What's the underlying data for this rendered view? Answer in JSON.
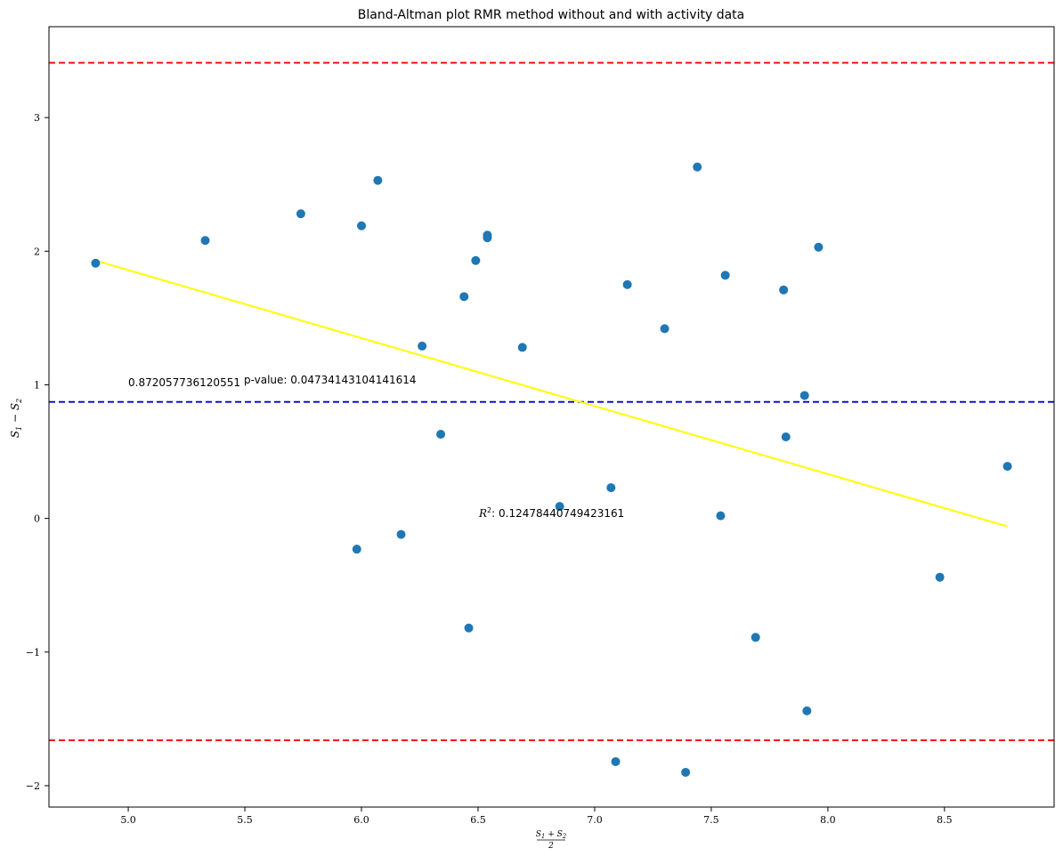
{
  "chart_data": {
    "type": "scatter",
    "title": "Bland-Altman plot RMR method without and with activity data",
    "xlabel": "(S1+S2)/2",
    "ylabel": "S1 − S2",
    "xlim": [
      4.66,
      8.97
    ],
    "ylim": [
      -2.16,
      3.68
    ],
    "xticks": [
      5.0,
      5.5,
      6.0,
      6.5,
      7.0,
      7.5,
      8.0,
      8.5
    ],
    "xtick_labels": [
      "5.0",
      "5.5",
      "6.0",
      "6.5",
      "7.0",
      "7.5",
      "8.0",
      "8.5"
    ],
    "yticks": [
      -2,
      -1,
      0,
      1,
      2,
      3
    ],
    "ytick_labels": [
      "−2",
      "−1",
      "0",
      "1",
      "2",
      "3"
    ],
    "points": {
      "color": "#1f77b4",
      "x": [
        4.86,
        5.33,
        5.74,
        6.0,
        6.07,
        5.98,
        6.17,
        6.26,
        6.34,
        6.44,
        6.46,
        6.49,
        6.54,
        6.54,
        6.69,
        6.85,
        7.07,
        7.09,
        7.14,
        7.3,
        7.39,
        7.44,
        7.54,
        7.56,
        7.69,
        7.81,
        7.82,
        7.9,
        7.91,
        7.96,
        8.48,
        8.77
      ],
      "y": [
        1.91,
        2.08,
        2.28,
        2.19,
        2.53,
        -0.23,
        -0.12,
        1.29,
        0.63,
        1.66,
        -0.82,
        1.93,
        2.12,
        2.1,
        1.28,
        0.09,
        0.23,
        -1.82,
        1.75,
        1.42,
        -1.9,
        2.63,
        0.02,
        1.82,
        -0.89,
        1.71,
        0.61,
        0.92,
        -1.44,
        2.03,
        -0.44,
        0.39
      ]
    },
    "mean_line": {
      "y": 0.872,
      "color": "#0000cc",
      "style": "dashed"
    },
    "upper_limit": {
      "y": 3.41,
      "color": "#ff0000",
      "style": "dashed"
    },
    "lower_limit": {
      "y": -1.66,
      "color": "#ff0000",
      "style": "dashed"
    },
    "regression_line": {
      "x": [
        4.86,
        8.77
      ],
      "y": [
        1.93,
        -0.06
      ],
      "color": "#ffff00"
    },
    "annotations": {
      "mean_text": "0.872057736120551",
      "pvalue_text": "p-value: 0.04734143104141614",
      "r2_label": "R",
      "r2_exp": "2",
      "r2_value": ": 0.12478440749423161"
    }
  }
}
